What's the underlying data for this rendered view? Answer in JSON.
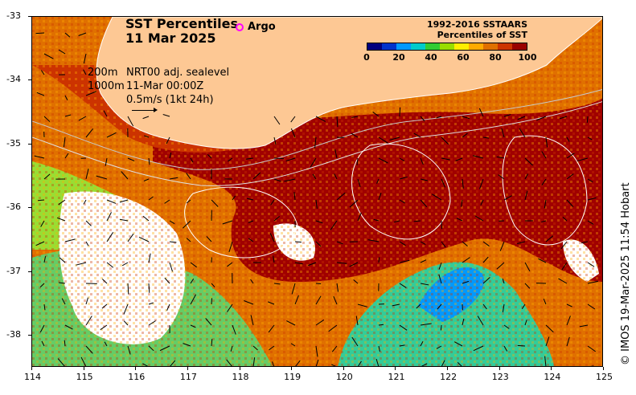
{
  "title": {
    "line1": "SST Percentiles",
    "line2": "11 Mar 2025"
  },
  "argo_label": "Argo",
  "legend": {
    "title_line1": "1992-2016 SSTAARS",
    "title_line2": "Percentiles of SST",
    "ticks": [
      "0",
      "20",
      "40",
      "60",
      "80",
      "100"
    ],
    "colors": [
      "#00007f",
      "#0033cc",
      "#0099ff",
      "#00cccc",
      "#33cc33",
      "#99dd00",
      "#ffee00",
      "#ffaa00",
      "#e07000",
      "#cc3300",
      "#990000"
    ]
  },
  "contours": {
    "shallow": "200m",
    "deep": "1000m"
  },
  "info": {
    "line1": "NRT00 adj. sealevel",
    "line2": "11-Mar 00:00Z",
    "scale": "0.5m/s (1kt 24h)"
  },
  "credit": "© IMOS 19-Mar-2025 11:54 Hobart",
  "axes": {
    "x_ticks": [
      "114",
      "115",
      "116",
      "117",
      "118",
      "119",
      "120",
      "121",
      "122",
      "123",
      "124",
      "125"
    ],
    "y_ticks": [
      "-33",
      "-34",
      "-35",
      "-36",
      "-37",
      "-38"
    ],
    "x_range": [
      114,
      125
    ],
    "y_range": [
      -38.5,
      -33
    ]
  },
  "colors": {
    "land": "#fdc894",
    "coast_line": "#ffffff",
    "arrow": "#000000",
    "argo": "#ff00ff"
  }
}
